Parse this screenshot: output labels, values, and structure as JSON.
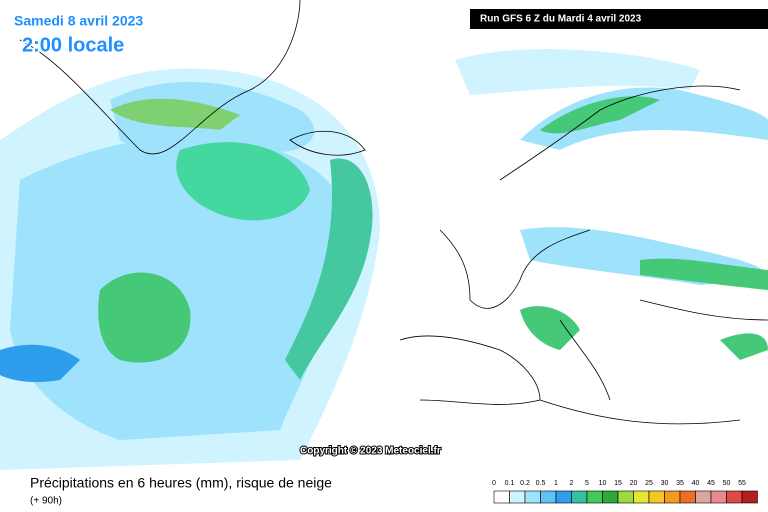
{
  "header": {
    "date": "Samedi 8 avril 2023",
    "time": "2:00 locale",
    "run": "Run GFS 6 Z du Mardi 4 avril 2023"
  },
  "copyright": "Copyright © 2023 Meteociel.fr",
  "footer": {
    "title": "Précipitations en 6 heures (mm), risque de neige",
    "subtitle": "(+ 90h)"
  },
  "legend": {
    "labels": [
      0,
      0.1,
      0.2,
      0.5,
      1,
      2,
      5,
      10,
      15,
      20,
      25,
      30,
      35,
      40,
      45,
      50,
      55
    ],
    "colors": [
      "#ffffff",
      "#cff3ff",
      "#9ee2fb",
      "#5fc3f5",
      "#2f9ded",
      "#33c2a0",
      "#45c85a",
      "#2fa83a",
      "#9fd840",
      "#e6e632",
      "#f5c828",
      "#f59a1e",
      "#ee6e28",
      "#d8a8a0",
      "#e88890",
      "#e04848",
      "#b41e1e"
    ]
  }
}
